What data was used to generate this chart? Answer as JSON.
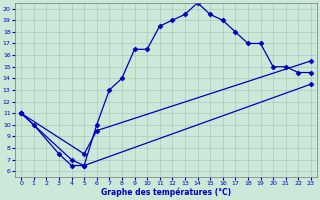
{
  "xlabel": "Graphe des températures (°C)",
  "xlim": [
    -0.5,
    23.5
  ],
  "ylim": [
    5.5,
    20.5
  ],
  "yticks": [
    6,
    7,
    8,
    9,
    10,
    11,
    12,
    13,
    14,
    15,
    16,
    17,
    18,
    19,
    20
  ],
  "xticks": [
    0,
    1,
    2,
    3,
    4,
    5,
    6,
    7,
    8,
    9,
    10,
    11,
    12,
    13,
    14,
    15,
    16,
    17,
    18,
    19,
    20,
    21,
    22,
    23
  ],
  "bg_color": "#cce8d8",
  "grid_color": "#aaccbb",
  "line_color": "#0000bb",
  "curve1_x": [
    0,
    1,
    3,
    4,
    5,
    6,
    7,
    8,
    9,
    10,
    11,
    12,
    13,
    14,
    15,
    16,
    17,
    18,
    19,
    20,
    21,
    22,
    23
  ],
  "curve1_y": [
    11,
    10,
    7.5,
    6.5,
    6.5,
    10,
    13,
    14,
    16.5,
    16.5,
    18.5,
    19.0,
    19.5,
    20.5,
    19.5,
    19.0,
    18.0,
    17.0,
    17.0,
    15.0,
    15.0,
    14.5,
    14.5
  ],
  "curve2_x": [
    0,
    5,
    6,
    23
  ],
  "curve2_y": [
    11,
    7.5,
    9.5,
    15.5
  ],
  "curve3_x": [
    0,
    4,
    5,
    23
  ],
  "curve3_y": [
    11,
    7.0,
    6.5,
    13.5
  ],
  "marker": "D",
  "markersize": 2.5,
  "linewidth": 0.9
}
